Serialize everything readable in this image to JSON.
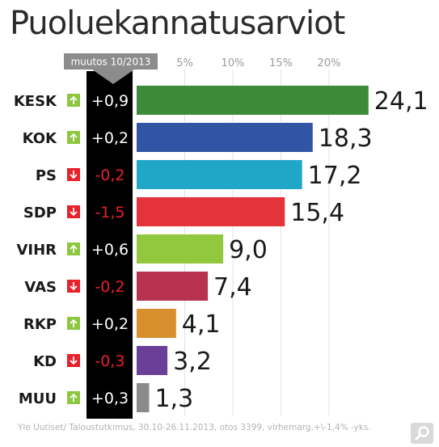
{
  "title": "Puoluekannatusarviot",
  "footer": "Yle Uutiset/ Taloustutkimus, 30.10-26.11.2013, otos 3399, virhemarg.+\\-1,4% -yks.",
  "change_header": "muutos 10/2013",
  "colors": {
    "up": "#8dc63f",
    "down": "#e8212b",
    "change_positive_text": "#ffffff",
    "change_negative_text": "#e8212b",
    "change_column": "#000000"
  },
  "icons": {
    "up": "arrow-up-icon",
    "down": "arrow-down-icon",
    "zoom": "magnifier-icon"
  },
  "chart_data": {
    "type": "bar",
    "orientation": "horizontal",
    "title": "Puoluekannatusarviot",
    "categories": [
      "KESK",
      "KOK",
      "PS",
      "SDP",
      "VIHR",
      "VAS",
      "RKP",
      "KD",
      "MUU"
    ],
    "values": [
      24.1,
      18.3,
      17.2,
      15.4,
      9.0,
      7.4,
      4.1,
      3.2,
      1.3
    ],
    "value_labels": [
      "24,1",
      "18,3",
      "17,2",
      "15,4",
      "9,0",
      "7,4",
      "4,1",
      "3,2",
      "1,3"
    ],
    "change_labels": [
      "+0,9",
      "+0,2",
      "-0,2",
      "-1,5",
      "+0,6",
      "-0,2",
      "+0,2",
      "-0,3",
      "+0,3"
    ],
    "change_direction": [
      "up",
      "up",
      "down",
      "down",
      "up",
      "down",
      "up",
      "down",
      "up"
    ],
    "bar_colors": [
      "#3d8a3a",
      "#2f55a4",
      "#20a7c7",
      "#e3333b",
      "#91c83d",
      "#b8314e",
      "#d88f2e",
      "#6a3f98",
      "#8a8a8a"
    ],
    "x_ticks": [
      5,
      10,
      15,
      20
    ],
    "x_tick_labels": [
      "5%",
      "10%",
      "15%",
      "20%"
    ],
    "xlim": [
      0,
      25
    ],
    "grid": true
  }
}
